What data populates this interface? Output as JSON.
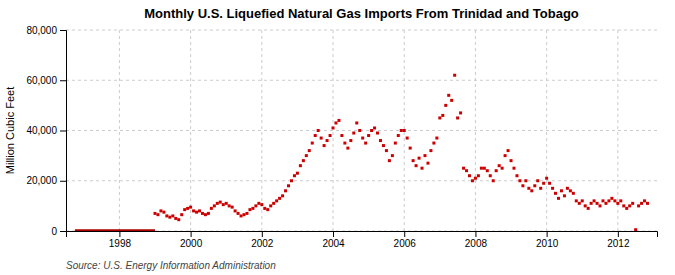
{
  "chart_data": {
    "type": "scatter",
    "title": "Monthly U.S. Liquefied Natural Gas Imports From Trinidad and Tobago",
    "y_label": "Million Cubic Feet",
    "annotations": [
      "Source: U.S. Energy Information Administration"
    ],
    "xlim": [
      1996.5,
      2013.1
    ],
    "xticks": [
      1998,
      2000,
      2002,
      2004,
      2006,
      2008,
      2010,
      2012
    ],
    "ylim": [
      0,
      80000
    ],
    "yticks": [
      0,
      {
        "value": 20000,
        "label": "20,000"
      },
      {
        "value": 40000,
        "label": "40,000"
      },
      {
        "value": 60000,
        "label": "60,000"
      },
      {
        "value": 80000,
        "label": "80,000"
      }
    ],
    "grid": true,
    "series": [
      {
        "type": "line",
        "color": "#aa0000",
        "x": [
          1996.75,
          1999.0
        ],
        "values": [
          0,
          0
        ]
      },
      {
        "type": "scatter",
        "color": "#cc0000",
        "marker": "square",
        "x": [
          1999.0,
          1999.083,
          1999.167,
          1999.25,
          1999.333,
          1999.417,
          1999.5,
          1999.583,
          1999.667,
          1999.75,
          1999.833,
          1999.917,
          2000.0,
          2000.083,
          2000.167,
          2000.25,
          2000.333,
          2000.417,
          2000.5,
          2000.583,
          2000.667,
          2000.75,
          2000.833,
          2000.917,
          2001.0,
          2001.083,
          2001.167,
          2001.25,
          2001.333,
          2001.417,
          2001.5,
          2001.583,
          2001.667,
          2001.75,
          2001.833,
          2001.917,
          2002.0,
          2002.083,
          2002.167,
          2002.25,
          2002.333,
          2002.417,
          2002.5,
          2002.583,
          2002.667,
          2002.75,
          2002.833,
          2002.917,
          2003.0,
          2003.083,
          2003.167,
          2003.25,
          2003.333,
          2003.417,
          2003.5,
          2003.583,
          2003.667,
          2003.75,
          2003.833,
          2003.917,
          2004.0,
          2004.083,
          2004.167,
          2004.25,
          2004.333,
          2004.417,
          2004.5,
          2004.583,
          2004.667,
          2004.75,
          2004.833,
          2004.917,
          2005.0,
          2005.083,
          2005.167,
          2005.25,
          2005.333,
          2005.417,
          2005.5,
          2005.583,
          2005.667,
          2005.75,
          2005.833,
          2005.917,
          2006.0,
          2006.083,
          2006.167,
          2006.25,
          2006.333,
          2006.417,
          2006.5,
          2006.583,
          2006.667,
          2006.75,
          2006.833,
          2006.917,
          2007.0,
          2007.083,
          2007.167,
          2007.25,
          2007.333,
          2007.417,
          2007.5,
          2007.583,
          2007.667,
          2007.75,
          2007.833,
          2007.917,
          2008.0,
          2008.083,
          2008.167,
          2008.25,
          2008.333,
          2008.417,
          2008.5,
          2008.583,
          2008.667,
          2008.75,
          2008.833,
          2008.917,
          2009.0,
          2009.083,
          2009.167,
          2009.25,
          2009.333,
          2009.417,
          2009.5,
          2009.583,
          2009.667,
          2009.75,
          2009.833,
          2009.917,
          2010.0,
          2010.083,
          2010.167,
          2010.25,
          2010.333,
          2010.417,
          2010.5,
          2010.583,
          2010.667,
          2010.75,
          2010.833,
          2010.917,
          2011.0,
          2011.083,
          2011.167,
          2011.25,
          2011.333,
          2011.417,
          2011.5,
          2011.583,
          2011.667,
          2011.75,
          2011.833,
          2011.917,
          2012.0,
          2012.083,
          2012.167,
          2012.25,
          2012.333,
          2012.417,
          2012.5,
          2012.583,
          2012.667,
          2012.75,
          2012.833
        ],
        "values": [
          7000,
          6500,
          8000,
          7500,
          6000,
          5500,
          6000,
          5000,
          4500,
          6500,
          8500,
          9000,
          9500,
          8000,
          7500,
          8000,
          7000,
          6500,
          7000,
          9000,
          10000,
          11000,
          11500,
          10500,
          11000,
          10000,
          9500,
          8000,
          7000,
          6000,
          6500,
          7000,
          8500,
          9000,
          10000,
          11000,
          10500,
          9000,
          8500,
          10000,
          11000,
          12000,
          13000,
          14000,
          16000,
          18000,
          20000,
          22000,
          23000,
          26000,
          28000,
          30000,
          32000,
          35000,
          38000,
          40000,
          37000,
          34000,
          36000,
          38000,
          41000,
          43000,
          44000,
          38000,
          35000,
          33000,
          36000,
          39000,
          43000,
          40000,
          37000,
          35000,
          38000,
          40000,
          41000,
          39000,
          36000,
          34000,
          32000,
          28000,
          30000,
          35000,
          38000,
          40000,
          40000,
          37000,
          33000,
          28000,
          26000,
          29000,
          25000,
          30000,
          27000,
          32000,
          35000,
          37000,
          45000,
          46000,
          50000,
          54000,
          52000,
          62000,
          45000,
          47000,
          25000,
          24000,
          22000,
          20000,
          21000,
          22000,
          25000,
          25000,
          24000,
          22000,
          20000,
          24000,
          26000,
          25000,
          30000,
          32000,
          28000,
          25000,
          22000,
          20000,
          18000,
          20000,
          17000,
          16000,
          18000,
          20000,
          17000,
          19000,
          21000,
          19000,
          17000,
          15000,
          13000,
          16000,
          14000,
          17000,
          16000,
          15000,
          12000,
          11000,
          12000,
          10000,
          9000,
          11000,
          12000,
          11000,
          10000,
          12000,
          11000,
          12000,
          13000,
          12000,
          11000,
          12000,
          10000,
          9000,
          10000,
          11000,
          500,
          10000,
          11000,
          12000,
          11000
        ]
      }
    ]
  }
}
